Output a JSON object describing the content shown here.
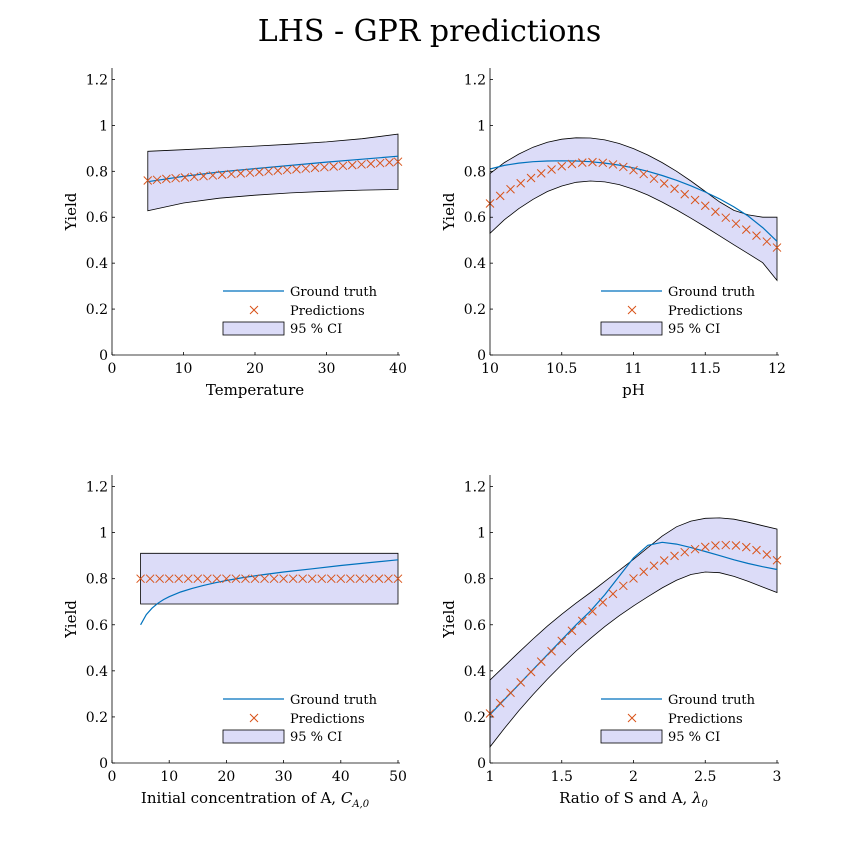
{
  "figure": {
    "title": "LHS - GPR predictions"
  },
  "legend": {
    "ground_truth": "Ground truth",
    "predictions": "Predictions",
    "ci": "95 % CI"
  },
  "colors": {
    "ground_truth": "#0072BD",
    "predictions": "#D95319",
    "ci_fill": "#DCDCF8",
    "ci_edge": "#000000"
  },
  "chart_data": [
    {
      "type": "line",
      "xlabel": "Temperature",
      "xlabel_sub": "",
      "ylabel": "Yield",
      "xlim": [
        0,
        40
      ],
      "ylim": [
        0,
        1.25
      ],
      "xticks": [
        0,
        10,
        20,
        30,
        40
      ],
      "xtick_labels": [
        "0",
        "10",
        "20",
        "30",
        "40"
      ],
      "yticks": [
        0,
        0.2,
        0.4,
        0.6,
        0.8,
        1,
        1.2
      ],
      "ytick_labels": [
        "0",
        "0.2",
        "0.4",
        "0.6",
        "0.8",
        "1",
        "1.2"
      ],
      "legend_position": "bottom-right",
      "ground_truth": {
        "x": [
          5,
          10,
          15,
          20,
          25,
          30,
          35,
          40
        ],
        "y": [
          0.755,
          0.778,
          0.797,
          0.812,
          0.826,
          0.84,
          0.853,
          0.866
        ]
      },
      "predictions": {
        "x": [
          5,
          6.3,
          7.6,
          8.9,
          10.2,
          11.5,
          12.8,
          14.1,
          15.4,
          16.7,
          18,
          19.3,
          20.6,
          21.9,
          23.2,
          24.5,
          25.8,
          27.1,
          28.4,
          29.7,
          31,
          32.3,
          33.6,
          34.9,
          36.2,
          37.5,
          38.8,
          40
        ],
        "y": [
          0.76,
          0.763,
          0.767,
          0.77,
          0.773,
          0.776,
          0.779,
          0.782,
          0.785,
          0.788,
          0.791,
          0.794,
          0.797,
          0.8,
          0.803,
          0.806,
          0.809,
          0.812,
          0.815,
          0.818,
          0.821,
          0.824,
          0.827,
          0.83,
          0.833,
          0.836,
          0.839,
          0.842
        ]
      },
      "ci": {
        "x": [
          5,
          10,
          15,
          20,
          25,
          30,
          35,
          40
        ],
        "upper": [
          0.887,
          0.894,
          0.902,
          0.91,
          0.918,
          0.928,
          0.942,
          0.962
        ],
        "lower": [
          0.628,
          0.662,
          0.683,
          0.696,
          0.706,
          0.713,
          0.718,
          0.721
        ]
      }
    },
    {
      "type": "line",
      "xlabel": "pH",
      "xlabel_sub": "",
      "ylabel": "Yield",
      "xlim": [
        10,
        12
      ],
      "ylim": [
        0,
        1.25
      ],
      "xticks": [
        10,
        10.5,
        11,
        11.5,
        12
      ],
      "xtick_labels": [
        "10",
        "10.5",
        "11",
        "11.5",
        "12"
      ],
      "yticks": [
        0,
        0.2,
        0.4,
        0.6,
        0.8,
        1,
        1.2
      ],
      "ytick_labels": [
        "0",
        "0.2",
        "0.4",
        "0.6",
        "0.8",
        "1",
        "1.2"
      ],
      "legend_position": "bottom-right",
      "ground_truth": {
        "x": [
          10,
          10.1,
          10.2,
          10.3,
          10.4,
          10.5,
          10.6,
          10.7,
          10.8,
          10.9,
          11,
          11.1,
          11.2,
          11.3,
          11.4,
          11.5,
          11.6,
          11.7,
          11.8,
          11.9,
          12
        ],
        "y": [
          0.81,
          0.826,
          0.836,
          0.842,
          0.845,
          0.846,
          0.845,
          0.842,
          0.836,
          0.827,
          0.815,
          0.8,
          0.782,
          0.761,
          0.737,
          0.71,
          0.68,
          0.645,
          0.605,
          0.555,
          0.495
        ]
      },
      "predictions": {
        "x": [
          10,
          10.071,
          10.143,
          10.214,
          10.286,
          10.357,
          10.429,
          10.5,
          10.571,
          10.643,
          10.714,
          10.786,
          10.857,
          10.929,
          11,
          11.071,
          11.143,
          11.214,
          11.286,
          11.357,
          11.429,
          11.5,
          11.571,
          11.643,
          11.714,
          11.786,
          11.857,
          11.929,
          12
        ],
        "y": [
          0.66,
          0.693,
          0.722,
          0.748,
          0.771,
          0.791,
          0.808,
          0.822,
          0.832,
          0.838,
          0.84,
          0.837,
          0.83,
          0.819,
          0.805,
          0.788,
          0.768,
          0.747,
          0.724,
          0.7,
          0.675,
          0.65,
          0.624,
          0.598,
          0.572,
          0.546,
          0.52,
          0.494,
          0.468
        ]
      },
      "ci": {
        "x": [
          10,
          10.1,
          10.2,
          10.3,
          10.4,
          10.5,
          10.6,
          10.7,
          10.8,
          10.9,
          11,
          11.1,
          11.2,
          11.3,
          11.4,
          11.5,
          11.6,
          11.7,
          11.8,
          11.9,
          12
        ],
        "upper": [
          0.79,
          0.838,
          0.875,
          0.905,
          0.927,
          0.94,
          0.946,
          0.945,
          0.937,
          0.921,
          0.899,
          0.871,
          0.838,
          0.8,
          0.758,
          0.712,
          0.667,
          0.63,
          0.61,
          0.6,
          0.6
        ],
        "lower": [
          0.53,
          0.589,
          0.637,
          0.678,
          0.712,
          0.736,
          0.752,
          0.758,
          0.754,
          0.742,
          0.722,
          0.697,
          0.666,
          0.632,
          0.596,
          0.558,
          0.519,
          0.48,
          0.441,
          0.402,
          0.325
        ]
      }
    },
    {
      "type": "line",
      "xlabel": "Initial concentration of A, ",
      "xlabel_sub": "C_A,0",
      "ylabel": "Yield",
      "xlim": [
        0,
        50
      ],
      "ylim": [
        0,
        1.25
      ],
      "xticks": [
        0,
        10,
        20,
        30,
        40,
        50
      ],
      "xtick_labels": [
        "0",
        "10",
        "20",
        "30",
        "40",
        "50"
      ],
      "yticks": [
        0,
        0.2,
        0.4,
        0.6,
        0.8,
        1,
        1.2
      ],
      "ytick_labels": [
        "0",
        "0.2",
        "0.4",
        "0.6",
        "0.8",
        "1",
        "1.2"
      ],
      "legend_position": "bottom-right",
      "ground_truth": {
        "x": [
          5,
          6,
          7,
          8,
          9,
          10,
          12,
          14,
          16,
          18,
          20,
          23,
          26,
          30,
          35,
          40,
          45,
          50
        ],
        "y": [
          0.6,
          0.644,
          0.672,
          0.693,
          0.709,
          0.722,
          0.742,
          0.758,
          0.771,
          0.782,
          0.792,
          0.805,
          0.816,
          0.829,
          0.843,
          0.857,
          0.87,
          0.882
        ]
      },
      "predictions": {
        "x": [
          5,
          6.667,
          8.333,
          10,
          11.667,
          13.333,
          15,
          16.667,
          18.333,
          20,
          21.667,
          23.333,
          25,
          26.667,
          28.333,
          30,
          31.667,
          33.333,
          35,
          36.667,
          38.333,
          40,
          41.667,
          43.333,
          45,
          46.667,
          48.333,
          50
        ],
        "y": [
          0.8,
          0.8,
          0.8,
          0.8,
          0.8,
          0.8,
          0.8,
          0.8,
          0.8,
          0.8,
          0.8,
          0.8,
          0.8,
          0.8,
          0.8,
          0.8,
          0.8,
          0.8,
          0.8,
          0.8,
          0.8,
          0.8,
          0.8,
          0.8,
          0.8,
          0.8,
          0.8,
          0.8
        ]
      },
      "ci": {
        "x": [
          5,
          50
        ],
        "upper": [
          0.91,
          0.91
        ],
        "lower": [
          0.69,
          0.69
        ]
      }
    },
    {
      "type": "line",
      "xlabel": "Ratio of S and A, ",
      "xlabel_sub": "λ_0",
      "ylabel": "Yield",
      "xlim": [
        1,
        3
      ],
      "ylim": [
        0,
        1.25
      ],
      "xticks": [
        1,
        1.5,
        2,
        2.5,
        3
      ],
      "xtick_labels": [
        "1",
        "1.5",
        "2",
        "2.5",
        "3"
      ],
      "yticks": [
        0,
        0.2,
        0.4,
        0.6,
        0.8,
        1,
        1.2
      ],
      "ytick_labels": [
        "0",
        "0.2",
        "0.4",
        "0.6",
        "0.8",
        "1",
        "1.2"
      ],
      "legend_position": "bottom-right",
      "ground_truth": {
        "x": [
          1,
          1.1,
          1.2,
          1.3,
          1.4,
          1.5,
          1.6,
          1.7,
          1.8,
          1.9,
          2,
          2.1,
          2.2,
          2.3,
          2.4,
          2.5,
          2.6,
          2.7,
          2.8,
          2.9,
          3
        ],
        "y": [
          0.21,
          0.275,
          0.34,
          0.405,
          0.47,
          0.535,
          0.6,
          0.66,
          0.73,
          0.81,
          0.89,
          0.945,
          0.958,
          0.95,
          0.935,
          0.918,
          0.9,
          0.882,
          0.866,
          0.852,
          0.84
        ]
      },
      "predictions": {
        "x": [
          1,
          1.071,
          1.143,
          1.214,
          1.286,
          1.357,
          1.429,
          1.5,
          1.571,
          1.643,
          1.714,
          1.786,
          1.857,
          1.929,
          2,
          2.071,
          2.143,
          2.214,
          2.286,
          2.357,
          2.429,
          2.5,
          2.571,
          2.643,
          2.714,
          2.786,
          2.857,
          2.929,
          3
        ],
        "y": [
          0.215,
          0.26,
          0.305,
          0.35,
          0.395,
          0.44,
          0.485,
          0.53,
          0.574,
          0.617,
          0.658,
          0.697,
          0.734,
          0.769,
          0.801,
          0.83,
          0.856,
          0.879,
          0.899,
          0.915,
          0.928,
          0.938,
          0.944,
          0.946,
          0.944,
          0.937,
          0.924,
          0.905,
          0.88
        ]
      },
      "ci": {
        "x": [
          1,
          1.1,
          1.2,
          1.3,
          1.4,
          1.5,
          1.6,
          1.7,
          1.8,
          1.9,
          2,
          2.1,
          2.2,
          2.3,
          2.4,
          2.5,
          2.6,
          2.7,
          2.8,
          2.9,
          3
        ],
        "upper": [
          0.36,
          0.42,
          0.48,
          0.538,
          0.594,
          0.646,
          0.694,
          0.74,
          0.788,
          0.836,
          0.884,
          0.935,
          0.985,
          1.025,
          1.05,
          1.062,
          1.064,
          1.058,
          1.045,
          1.03,
          1.015
        ],
        "lower": [
          0.07,
          0.15,
          0.226,
          0.297,
          0.364,
          0.427,
          0.486,
          0.541,
          0.592,
          0.639,
          0.682,
          0.722,
          0.76,
          0.793,
          0.818,
          0.829,
          0.826,
          0.81,
          0.788,
          0.764,
          0.74
        ]
      }
    }
  ]
}
